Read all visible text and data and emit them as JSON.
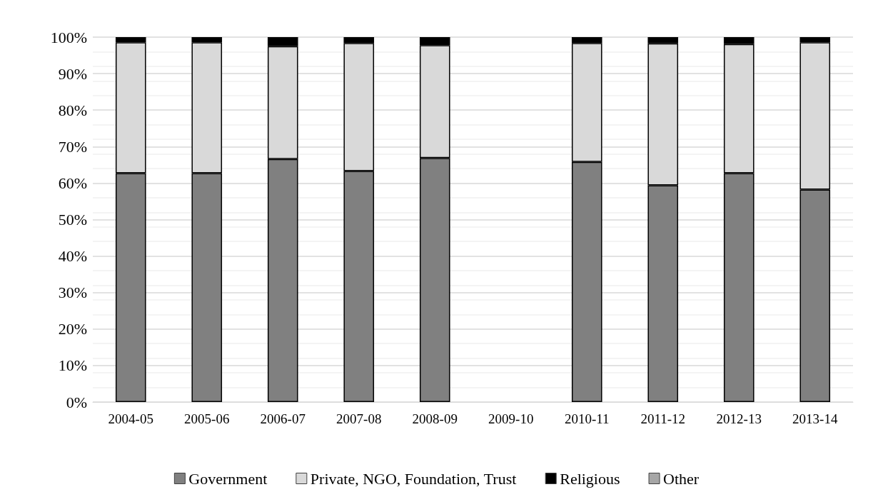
{
  "chart_data": {
    "type": "bar",
    "stacked": true,
    "categories": [
      "2004-05",
      "2005-06",
      "2006-07",
      "2007-08",
      "2008-09",
      "2009-10",
      "2010-11",
      "2011-12",
      "2012-13",
      "2013-14"
    ],
    "series": [
      {
        "name": "Government",
        "color": "#808080",
        "values": [
          62.7,
          62.7,
          66.6,
          63.3,
          66.9,
          null,
          65.8,
          59.4,
          62.7,
          58.2
        ]
      },
      {
        "name": "Private, NGO, Foundation, Trust",
        "color": "#d9d9d9",
        "values": [
          35.9,
          35.9,
          30.9,
          35.1,
          30.9,
          null,
          32.6,
          38.9,
          35.4,
          40.4
        ]
      },
      {
        "name": "Religious",
        "color": "#000000",
        "values": [
          1.4,
          1.4,
          2.5,
          1.6,
          2.2,
          null,
          1.6,
          1.7,
          1.9,
          1.4
        ]
      },
      {
        "name": "Other",
        "color": "#a6a6a6",
        "values": [
          null,
          null,
          null,
          null,
          null,
          null,
          null,
          null,
          null,
          null
        ]
      }
    ],
    "ylim": [
      0,
      100
    ],
    "yticks": [
      {
        "value": 0,
        "label": "0%"
      },
      {
        "value": 10,
        "label": "10%"
      },
      {
        "value": 20,
        "label": "20%"
      },
      {
        "value": 30,
        "label": "30%"
      },
      {
        "value": 40,
        "label": "40%"
      },
      {
        "value": 50,
        "label": "50%"
      },
      {
        "value": 60,
        "label": "60%"
      },
      {
        "value": 70,
        "label": "70%"
      },
      {
        "value": 80,
        "label": "80%"
      },
      {
        "value": 90,
        "label": "90%"
      },
      {
        "value": 100,
        "label": "100%"
      }
    ],
    "grid": "y",
    "legend": "bottom"
  }
}
